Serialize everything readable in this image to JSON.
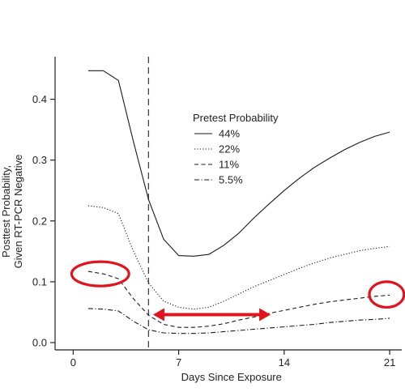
{
  "chart_data": {
    "type": "line",
    "xlabel": "Days Since Exposure",
    "ylabel_lines": [
      "Posttest Probability,",
      "Given RT-PCR Negative"
    ],
    "xlim": [
      -1.2,
      21.8
    ],
    "ylim": [
      -0.012,
      0.47
    ],
    "x_ticks": [
      0,
      7,
      14,
      21
    ],
    "y_ticks": [
      0.0,
      0.1,
      0.2,
      0.3,
      0.4
    ],
    "y_tick_labels": [
      "0.0",
      "0.1",
      "0.2",
      "0.3",
      "0.4"
    ],
    "legend": {
      "title": "Pretest Probability",
      "placement": "center-right",
      "entries": [
        "44%",
        "22%",
        "11%",
        "5.5%"
      ]
    },
    "vertical_reference_line": {
      "x": 5,
      "style": "dashed"
    },
    "series": [
      {
        "name": "44%",
        "style": "solid",
        "points": [
          [
            1,
            0.447
          ],
          [
            2,
            0.447
          ],
          [
            3,
            0.431
          ],
          [
            4,
            0.33
          ],
          [
            5,
            0.235
          ],
          [
            6,
            0.17
          ],
          [
            7,
            0.143
          ],
          [
            8,
            0.142
          ],
          [
            9,
            0.145
          ],
          [
            10,
            0.16
          ],
          [
            11,
            0.18
          ],
          [
            12,
            0.205
          ],
          [
            13,
            0.228
          ],
          [
            14,
            0.25
          ],
          [
            15,
            0.27
          ],
          [
            16,
            0.288
          ],
          [
            17,
            0.303
          ],
          [
            18,
            0.317
          ],
          [
            19,
            0.329
          ],
          [
            20,
            0.339
          ],
          [
            21,
            0.346
          ]
        ]
      },
      {
        "name": "22%",
        "style": "dotted",
        "points": [
          [
            1,
            0.225
          ],
          [
            2,
            0.222
          ],
          [
            3,
            0.212
          ],
          [
            4,
            0.15
          ],
          [
            5,
            0.098
          ],
          [
            6,
            0.068
          ],
          [
            7,
            0.058
          ],
          [
            8,
            0.055
          ],
          [
            9,
            0.058
          ],
          [
            10,
            0.068
          ],
          [
            11,
            0.08
          ],
          [
            12,
            0.092
          ],
          [
            13,
            0.102
          ],
          [
            14,
            0.112
          ],
          [
            15,
            0.122
          ],
          [
            16,
            0.131
          ],
          [
            17,
            0.139
          ],
          [
            18,
            0.145
          ],
          [
            19,
            0.151
          ],
          [
            20,
            0.155
          ],
          [
            21,
            0.158
          ]
        ]
      },
      {
        "name": "11%",
        "style": "dashed",
        "points": [
          [
            1,
            0.117
          ],
          [
            2,
            0.113
          ],
          [
            3,
            0.105
          ],
          [
            4,
            0.072
          ],
          [
            5,
            0.045
          ],
          [
            6,
            0.03
          ],
          [
            7,
            0.025
          ],
          [
            8,
            0.025
          ],
          [
            9,
            0.027
          ],
          [
            10,
            0.031
          ],
          [
            11,
            0.037
          ],
          [
            12,
            0.042
          ],
          [
            13,
            0.048
          ],
          [
            14,
            0.053
          ],
          [
            15,
            0.058
          ],
          [
            16,
            0.063
          ],
          [
            17,
            0.067
          ],
          [
            18,
            0.07
          ],
          [
            19,
            0.073
          ],
          [
            20,
            0.076
          ],
          [
            21,
            0.078
          ]
        ]
      },
      {
        "name": "5.5%",
        "style": "dashdot",
        "points": [
          [
            1,
            0.056
          ],
          [
            2,
            0.055
          ],
          [
            3,
            0.052
          ],
          [
            4,
            0.035
          ],
          [
            5,
            0.021
          ],
          [
            6,
            0.016
          ],
          [
            7,
            0.015
          ],
          [
            8,
            0.015
          ],
          [
            9,
            0.016
          ],
          [
            10,
            0.018
          ],
          [
            11,
            0.02
          ],
          [
            12,
            0.022
          ],
          [
            13,
            0.024
          ],
          [
            14,
            0.026
          ],
          [
            15,
            0.028
          ],
          [
            16,
            0.03
          ],
          [
            17,
            0.033
          ],
          [
            18,
            0.035
          ],
          [
            19,
            0.037
          ],
          [
            20,
            0.038
          ],
          [
            21,
            0.04
          ]
        ]
      }
    ],
    "annotations": {
      "color": "#e0141e",
      "ellipses": [
        {
          "cx": 1.8,
          "cy": 0.113,
          "rx_days": 1.9,
          "ry_prob": 0.02
        },
        {
          "cx": 20.8,
          "cy": 0.079,
          "rx_days": 1.15,
          "ry_prob": 0.021
        }
      ],
      "double_arrow": {
        "x_start": 5.3,
        "x_end": 13.1,
        "y": 0.046
      }
    }
  }
}
